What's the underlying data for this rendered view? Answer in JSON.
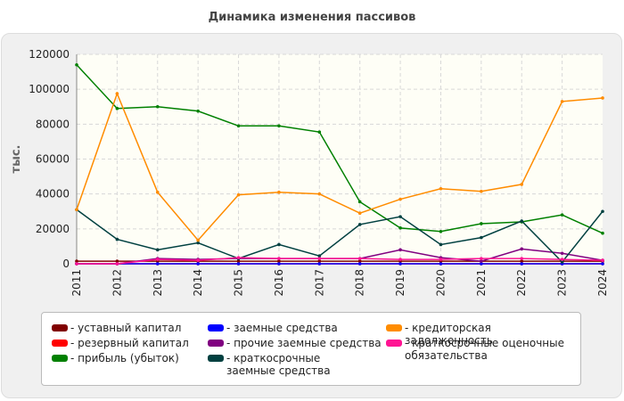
{
  "chart_data": {
    "type": "line",
    "title": "Динамика изменения пассивов",
    "ylabel": "тыс.",
    "xlabel": "",
    "ylim": [
      0,
      120000
    ],
    "y_ticks": [
      "0",
      "20000",
      "40000",
      "60000",
      "80000",
      "100000",
      "120000"
    ],
    "categories": [
      "2011",
      "2012",
      "2013",
      "2014",
      "2015",
      "2016",
      "2017",
      "2018",
      "2019",
      "2020",
      "2021",
      "2022",
      "2023",
      "2024"
    ],
    "grid": true,
    "legend_position": "bottom",
    "series": [
      {
        "name": "- уставный капитал",
        "color": "#800000",
        "values": [
          1500,
          1500,
          1500,
          1500,
          1500,
          1500,
          1500,
          1500,
          1500,
          1500,
          1500,
          1500,
          1500,
          1500
        ]
      },
      {
        "name": "- резервный капитал",
        "color": "#ff0000",
        "values": [
          0,
          0,
          0,
          0,
          0,
          0,
          0,
          0,
          0,
          0,
          0,
          0,
          0,
          0
        ]
      },
      {
        "name": "- прибыль (убыток)",
        "color": "#008000",
        "values": [
          114000,
          89000,
          90000,
          87500,
          79000,
          79000,
          75500,
          35500,
          20500,
          18500,
          23000,
          24000,
          28000,
          17500
        ]
      },
      {
        "name": "- заемные средства",
        "color": "#0000ff",
        "values": [
          0,
          0,
          0,
          0,
          0,
          0,
          0,
          0,
          0,
          0,
          0,
          0,
          0,
          0
        ]
      },
      {
        "name": "- прочие заемные средства",
        "color": "#800080",
        "values": [
          0,
          0,
          3000,
          2500,
          3000,
          3000,
          3000,
          3000,
          8000,
          3500,
          1500,
          8500,
          6000,
          2000
        ]
      },
      {
        "name": "- краткосрочные заемные средства",
        "color": "#004040",
        "values": [
          31000,
          14000,
          8000,
          12000,
          3000,
          11000,
          4500,
          22500,
          27000,
          11000,
          15000,
          24500,
          1000,
          30000
        ]
      },
      {
        "name": "- кредиторская задолженность",
        "color": "#ff8c00",
        "values": [
          31000,
          97500,
          41000,
          13500,
          39500,
          41000,
          40000,
          29000,
          37000,
          43000,
          41500,
          45500,
          93000,
          95000
        ]
      },
      {
        "name": "- краткосрочные оценочные обязательства",
        "color": "#ff1493",
        "values": [
          0,
          0,
          2500,
          2000,
          3500,
          3000,
          3000,
          3000,
          2500,
          2500,
          3000,
          3000,
          2500,
          2000
        ]
      }
    ]
  }
}
